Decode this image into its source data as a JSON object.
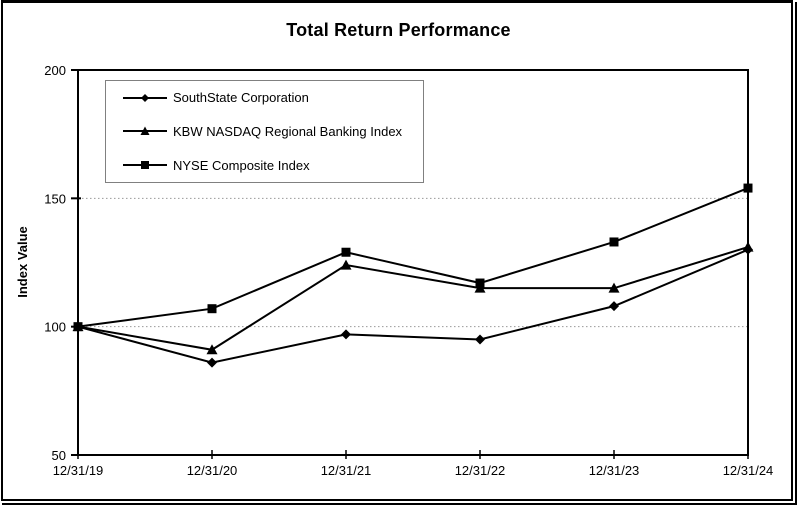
{
  "chart_data": {
    "type": "line",
    "title": "Total Return Performance",
    "xlabel": "",
    "ylabel": "Index Value",
    "x_categories": [
      "12/31/19",
      "12/31/20",
      "12/31/21",
      "12/31/22",
      "12/31/23",
      "12/31/24"
    ],
    "y_ticks": [
      200,
      150,
      100,
      50
    ],
    "ylim": [
      50,
      200
    ],
    "grid_values": [
      150,
      100
    ],
    "grid": true,
    "legend_position": "top-left",
    "series": [
      {
        "name": "SouthState Corporation",
        "marker": "diamond",
        "values": [
          100,
          86,
          97,
          95,
          108,
          130
        ]
      },
      {
        "name": "KBW NASDAQ Regional Banking Index",
        "marker": "triangle",
        "values": [
          100,
          91,
          124,
          115,
          115,
          131
        ]
      },
      {
        "name": "NYSE Composite Index",
        "marker": "square",
        "values": [
          100,
          107,
          129,
          117,
          133,
          154
        ]
      }
    ],
    "colors": {
      "series": "#000000",
      "grid": "#999999",
      "legend_border": "#808080",
      "frame": "#000000",
      "background": "#ffffff"
    }
  }
}
